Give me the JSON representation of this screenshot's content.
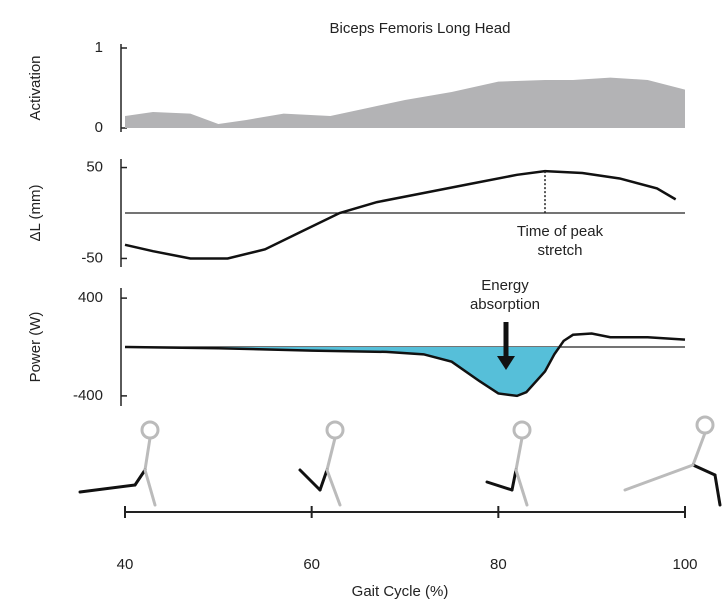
{
  "chart_data": [
    {
      "type": "area",
      "title": "Biceps Femoris Long Head",
      "y_label": "Activation",
      "x": [
        40,
        43,
        47,
        50,
        53,
        57,
        62,
        66,
        70,
        75,
        80,
        85,
        88,
        92,
        96,
        100
      ],
      "values": [
        0.15,
        0.2,
        0.18,
        0.05,
        0.1,
        0.18,
        0.15,
        0.25,
        0.35,
        0.45,
        0.58,
        0.6,
        0.6,
        0.63,
        0.6,
        0.48
      ],
      "color": "#b3b3b5",
      "xlim": [
        40,
        100
      ],
      "ylim": [
        0,
        1
      ],
      "yticks": [
        0,
        1
      ]
    },
    {
      "type": "line",
      "y_label": "ΔL (mm)",
      "annotation": "Time of peak stretch",
      "x": [
        40,
        43,
        47,
        51,
        55,
        59,
        63,
        67,
        72,
        77,
        82,
        85,
        89,
        93,
        97,
        99
      ],
      "values": [
        -35,
        -42,
        -50,
        -50,
        -40,
        -20,
        0,
        12,
        22,
        32,
        42,
        46,
        44,
        38,
        27,
        15
      ],
      "color": "#111111",
      "zero_line": true,
      "xlim": [
        40,
        100
      ],
      "ylim": [
        -55,
        55
      ],
      "yticks": [
        -50,
        50
      ]
    },
    {
      "type": "line",
      "y_label": "Power (W)",
      "annotation": "Energy absorption",
      "x": [
        40,
        50,
        60,
        68,
        72,
        75,
        78,
        80,
        82,
        83,
        85,
        86,
        87,
        88,
        90,
        92,
        96,
        100
      ],
      "values": [
        0,
        -10,
        -30,
        -40,
        -60,
        -120,
        -280,
        -380,
        -400,
        -370,
        -200,
        -60,
        50,
        100,
        110,
        80,
        80,
        60
      ],
      "color": "#111111",
      "fill_negative": "#56bfd9",
      "zero_line": true,
      "xlim": [
        40,
        100
      ],
      "ylim": [
        -450,
        450
      ],
      "yticks": [
        -400,
        400
      ],
      "xticks": [
        40,
        60,
        80,
        100
      ],
      "x_label": "Gait Cycle (%)"
    }
  ]
}
